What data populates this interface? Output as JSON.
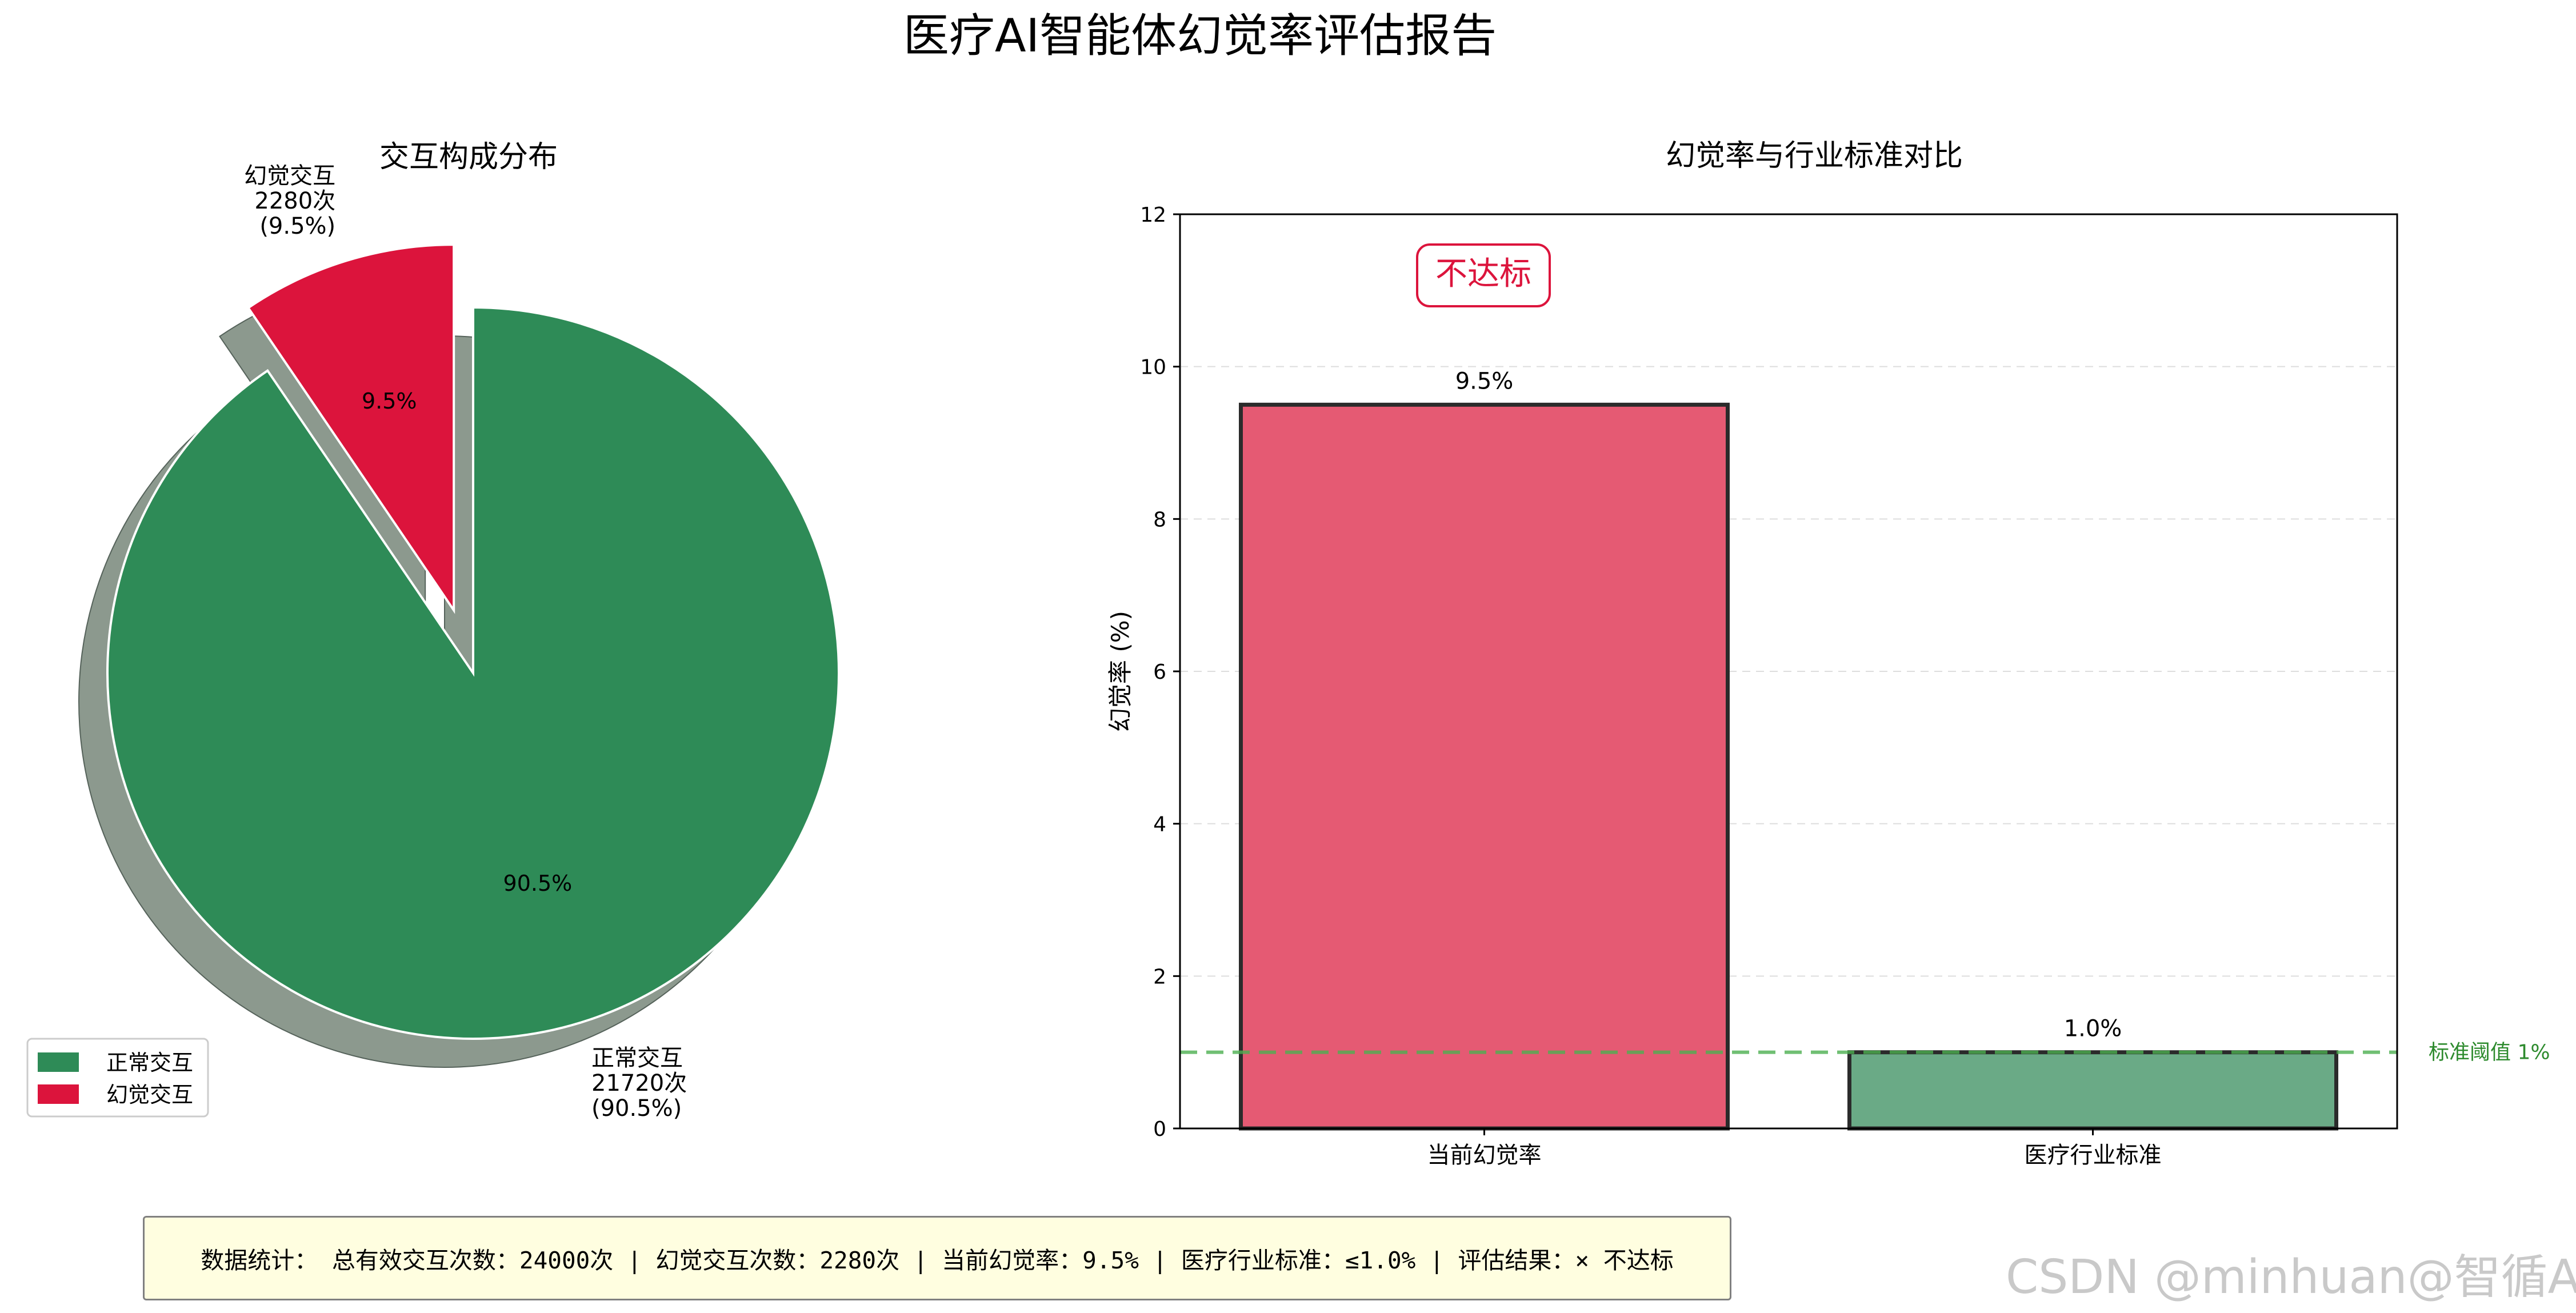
{
  "figure_title": "医疗AI智能体幻觉率评估报告",
  "chart_data": [
    {
      "type": "pie",
      "title": "交互构成分布",
      "slices": [
        {
          "label": "正常交互",
          "count": "21720次",
          "pct_label": "(90.5%)",
          "autopct": "90.5%",
          "value": 90.5,
          "color": "#2e8b57",
          "exploded": false
        },
        {
          "label": "幻觉交互",
          "count": "2280次",
          "pct_label": "(9.5%)",
          "autopct": "9.5%",
          "value": 9.5,
          "color": "#dc143c",
          "exploded": true
        }
      ],
      "legend": [
        "正常交互",
        "幻觉交互"
      ],
      "legend_position": "lower-left",
      "shadow": true,
      "start_angle_deg": 90
    },
    {
      "type": "bar",
      "title": "幻觉率与行业标准对比",
      "categories": [
        "当前幻觉率",
        "医疗行业标准"
      ],
      "values": [
        9.5,
        1.0
      ],
      "value_labels": [
        "9.5%",
        "1.0%"
      ],
      "colors": [
        "#e55a73",
        "#6aaa86"
      ],
      "ylabel": "幻觉率 (%)",
      "ylim": [
        0,
        12
      ],
      "yticks": [
        "0",
        "2",
        "4",
        "6",
        "8",
        "10",
        "12"
      ],
      "grid": "y-dashed",
      "threshold": {
        "value": 1.0,
        "label": "标准阈值 1%",
        "color": "#4caf50"
      },
      "badge": "不达标"
    }
  ],
  "stats_text": "数据统计： 总有效交互次数：24000次 | 幻觉交互次数：2280次 | 当前幻觉率：9.5% | 医疗行业标准：≤1.0% | 评估结果：× 不达标",
  "watermark": "CSDN @minhuan@智循AI"
}
